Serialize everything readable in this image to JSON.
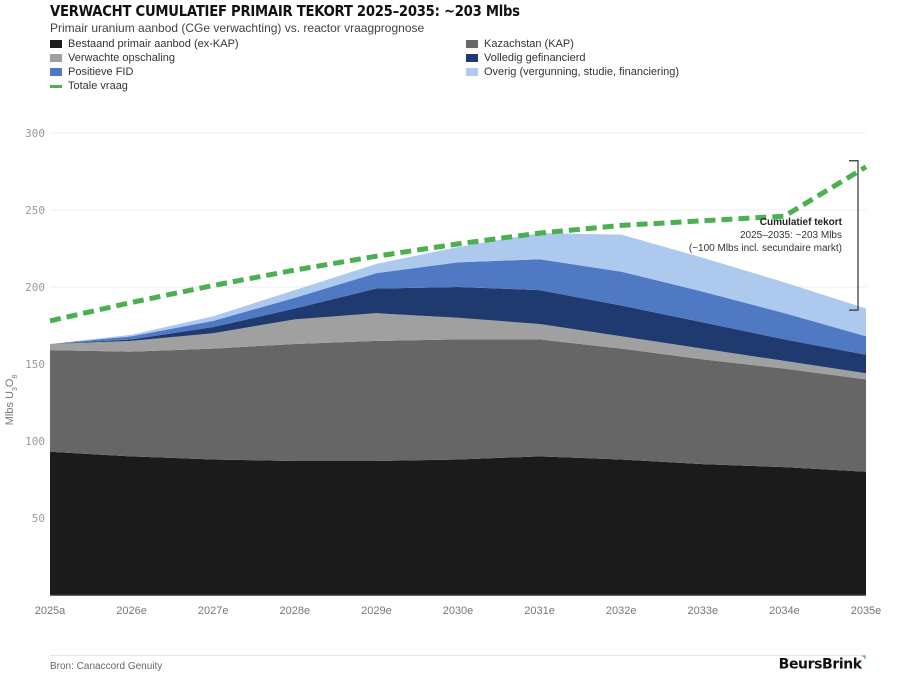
{
  "header": {
    "title": "VERWACHT CUMULATIEF PRIMAIR TEKORT 2025–2035: ~203 Mlbs",
    "subtitle": "Primair uranium aanbod (CGe verwachting) vs. reactor vraagprognose"
  },
  "legend": [
    {
      "label": "Bestaand primair aanbod (ex-KAP)",
      "color": "#1b1b1b",
      "kind": "area"
    },
    {
      "label": "Kazachstan (KAP)",
      "color": "#666666",
      "kind": "area"
    },
    {
      "label": "Verwachte opschaling",
      "color": "#a0a0a0",
      "kind": "area"
    },
    {
      "label": "Volledig gefinancierd",
      "color": "#1f3a6e",
      "kind": "area"
    },
    {
      "label": "Positieve FID",
      "color": "#5079c4",
      "kind": "area"
    },
    {
      "label": "Overig (vergunning, studie, financiering)",
      "color": "#adc9ee",
      "kind": "area"
    },
    {
      "label": "Totale vraag",
      "color": "#4caf50",
      "kind": "dashed-line"
    }
  ],
  "annotation": {
    "title": "Cumulatief tekort",
    "line1": "2025–2035: ~203 Mlbs",
    "line2": "(~100 Mlbs incl. secundaire markt)"
  },
  "footer": {
    "source": "Bron: Canaccord Genuity",
    "brand": "BeursBrink",
    "brand_mark": "⌝"
  },
  "chart_data": {
    "type": "area",
    "stacked": true,
    "title": "VERWACHT CUMULATIEF PRIMAIR TEKORT 2025–2035: ~203 Mlbs",
    "subtitle": "Primair uranium aanbod (CGe verwachting) vs. reactor vraagprognose",
    "xlabel": "",
    "ylabel": "Mlbs U3O8",
    "ylabel_parts": {
      "main": "Mlbs U",
      "sub1": "3",
      "mid": "O",
      "sub2": "8"
    },
    "categories": [
      "2025a",
      "2026e",
      "2027e",
      "2028e",
      "2029e",
      "2030e",
      "2031e",
      "2032e",
      "2033e",
      "2034e",
      "2035e"
    ],
    "ylim": [
      0,
      300
    ],
    "yticks": [
      50,
      100,
      150,
      200,
      250,
      300
    ],
    "grid": true,
    "legend_position": "top",
    "series": [
      {
        "name": "Bestaand primair aanbod (ex-KAP)",
        "color": "#1b1b1b",
        "values": [
          93,
          90,
          88,
          87,
          87,
          88,
          90,
          88,
          85,
          83,
          80
        ]
      },
      {
        "name": "Kazachstan (KAP)",
        "color": "#666666",
        "values": [
          66,
          68,
          72,
          76,
          78,
          78,
          76,
          72,
          68,
          64,
          60
        ]
      },
      {
        "name": "Verwachte opschaling",
        "color": "#a0a0a0",
        "values": [
          4,
          7,
          10,
          16,
          18,
          14,
          10,
          8,
          7,
          5,
          4
        ]
      },
      {
        "name": "Volledig gefinancierd",
        "color": "#1f3a6e",
        "values": [
          0,
          1,
          4,
          7,
          16,
          20,
          22,
          20,
          17,
          14,
          12
        ]
      },
      {
        "name": "Positieve FID",
        "color": "#5079c4",
        "values": [
          0,
          2,
          4,
          7,
          10,
          16,
          20,
          22,
          20,
          17,
          12
        ]
      },
      {
        "name": "Overig (vergunning, studie, financiering)",
        "color": "#adc9ee",
        "values": [
          0,
          1,
          3,
          5,
          6,
          10,
          17,
          24,
          22,
          20,
          18
        ]
      }
    ],
    "demand": {
      "name": "Totale vraag",
      "color": "#4caf50",
      "style": "dashed",
      "values": [
        178,
        190,
        201,
        211,
        220,
        228,
        235,
        240,
        243,
        246,
        278
      ]
    },
    "annotations": [
      {
        "text": "Cumulatief tekort",
        "detail": "2025–2035: ~203 Mlbs",
        "note": "(~100 Mlbs incl. secundaire markt)",
        "bracket_range": [
          185,
          282
        ],
        "at": "2035e"
      }
    ]
  }
}
